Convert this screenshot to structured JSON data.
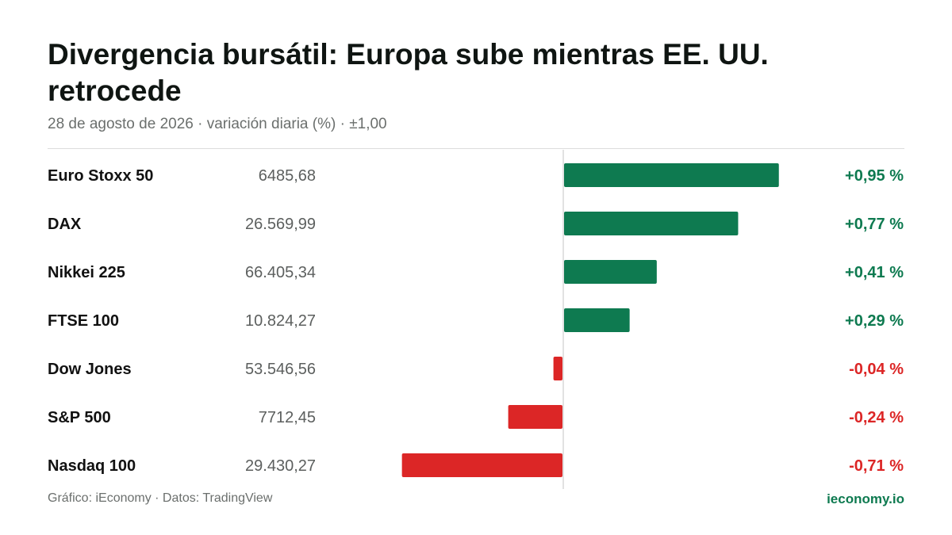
{
  "header": {
    "title": "Divergencia bursátil: Europa sube mientras EE. UU. retrocede",
    "subtitle": "28 de agosto de 2026 · variación diaria (%) · ±1,00"
  },
  "footer": {
    "source": "Gráfico: iEconomy · Datos: TradingView",
    "brand": "ieconomy.io"
  },
  "colors": {
    "positive": "#0e7a50",
    "negative": "#dc2626",
    "axis": "#d9d9d9"
  },
  "chart_data": {
    "type": "bar",
    "orientation": "horizontal",
    "xlim": [
      -1,
      1
    ],
    "rows": [
      {
        "index": "Euro Stoxx 50",
        "level": "6485,68",
        "change": 0.95,
        "change_label": "+0,95 %"
      },
      {
        "index": "DAX",
        "level": "26.569,99",
        "change": 0.77,
        "change_label": "+0,77 %"
      },
      {
        "index": "Nikkei 225",
        "level": "66.405,34",
        "change": 0.41,
        "change_label": "+0,41 %"
      },
      {
        "index": "FTSE 100",
        "level": "10.824,27",
        "change": 0.29,
        "change_label": "+0,29 %"
      },
      {
        "index": "Dow Jones",
        "level": "53.546,56",
        "change": -0.04,
        "change_label": "-0,04 %"
      },
      {
        "index": "S&P 500",
        "level": "7712,45",
        "change": -0.24,
        "change_label": "-0,24 %"
      },
      {
        "index": "Nasdaq 100",
        "level": "29.430,27",
        "change": -0.71,
        "change_label": "-0,71 %"
      }
    ]
  }
}
